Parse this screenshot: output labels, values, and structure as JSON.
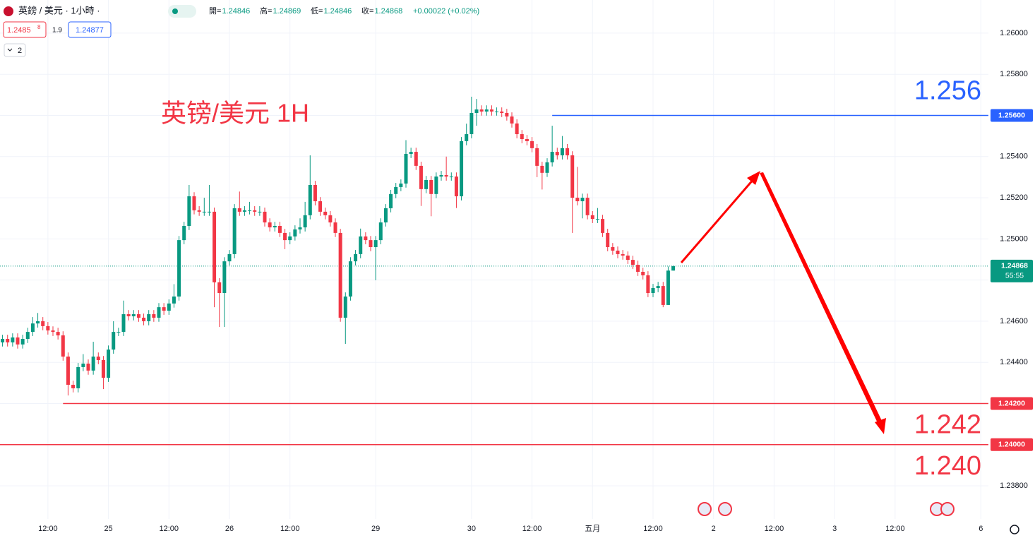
{
  "header": {
    "symbol": "英鎊 / 美元 · 1小時 ·",
    "ohlc": [
      {
        "label": "開=",
        "value": "1.24846"
      },
      {
        "label": "高=",
        "value": "1.24869"
      },
      {
        "label": "低=",
        "value": "1.24846"
      },
      {
        "label": "收=",
        "value": "1.24868"
      }
    ],
    "change": "+0.00022 (+0.02%)",
    "sell": {
      "price": "1.2485",
      "pip": "8"
    },
    "spread": "1.9",
    "buy": "1.24877",
    "indicators": "2",
    "countdown": "55:55"
  },
  "chart_data": {
    "type": "candlestick",
    "annotation": "英镑/美元 1H",
    "up_color": "#089981",
    "down_color": "#f23645",
    "grid": true,
    "ylim": [
      1.23639,
      1.26161
    ],
    "yticks": [
      {
        "value": 1.238,
        "label": "1.23800"
      },
      {
        "value": 1.24,
        "label": "1.24000"
      },
      {
        "value": 1.242,
        "label": "1.24200"
      },
      {
        "value": 1.244,
        "label": "1.24400"
      },
      {
        "value": 1.246,
        "label": "1.24600"
      },
      {
        "value": 1.248,
        "label": "1.24800"
      },
      {
        "value": 1.25,
        "label": "1.25000"
      },
      {
        "value": 1.252,
        "label": "1.25200"
      },
      {
        "value": 1.254,
        "label": "1.25400"
      },
      {
        "value": 1.256,
        "label": "1.25600"
      },
      {
        "value": 1.258,
        "label": "1.25800"
      },
      {
        "value": 1.26,
        "label": "1.26000"
      }
    ],
    "levels": [
      {
        "value": 1.256,
        "label": "1.25600",
        "annotation": "1.256",
        "color": "#2962ff"
      },
      {
        "value": 1.242,
        "label": "1.24200",
        "annotation": "1.242",
        "color": "#f23645"
      },
      {
        "value": 1.24,
        "label": "1.24000",
        "annotation": "1.240",
        "color": "#f23645"
      }
    ],
    "categories": [
      null,
      null,
      null,
      null,
      null,
      null,
      null,
      null,
      null,
      "12:00",
      null,
      null,
      null,
      null,
      null,
      null,
      null,
      null,
      null,
      null,
      null,
      "25",
      null,
      null,
      null,
      null,
      null,
      null,
      null,
      null,
      null,
      null,
      null,
      "12:00",
      null,
      null,
      null,
      null,
      null,
      null,
      null,
      null,
      null,
      null,
      null,
      "26",
      null,
      null,
      null,
      null,
      null,
      null,
      null,
      null,
      null,
      null,
      null,
      "12:00",
      null,
      null,
      null,
      null,
      null,
      null,
      null,
      null,
      null,
      null,
      null,
      null,
      null,
      null,
      null,
      null,
      "29",
      null,
      null,
      null,
      null,
      null,
      null,
      null,
      null,
      null,
      null,
      null,
      null,
      null,
      null,
      null,
      null,
      null,
      null,
      "30",
      null,
      null,
      null,
      null,
      null,
      null,
      null,
      null,
      null,
      null,
      null,
      "12:00",
      null,
      null,
      null,
      null,
      null,
      null,
      null,
      null,
      null,
      null,
      null,
      "五月",
      null,
      null,
      null,
      null,
      null,
      null,
      null,
      null,
      null,
      null,
      null,
      "12:00",
      null,
      null,
      null,
      null,
      null,
      null,
      null,
      null,
      null,
      null,
      null,
      "2",
      null,
      null,
      null,
      null,
      null,
      null,
      null,
      null,
      null,
      null,
      null,
      "12:00",
      null,
      null,
      null,
      null,
      null,
      null,
      null,
      null,
      null,
      null,
      null,
      "3",
      null,
      null,
      null,
      null,
      null,
      null,
      null,
      null,
      null,
      null,
      null,
      "12:00",
      null,
      null,
      null,
      null,
      null,
      null,
      null,
      null,
      null,
      null,
      null,
      null,
      null,
      null,
      null,
      null,
      "6",
      null
    ],
    "open": [
      1.24497,
      1.24514,
      1.24497,
      1.24521,
      1.24487,
      1.24514,
      1.24548,
      1.24589,
      1.246,
      1.24576,
      1.24555,
      1.24548,
      1.24531,
      1.24428,
      1.24291,
      1.24274,
      1.24377,
      1.24394,
      1.2436,
      1.24428,
      1.24411,
      1.24325,
      1.24462,
      1.24548,
      1.24548,
      1.24634,
      1.24624,
      1.24634,
      1.24617,
      1.246,
      1.24634,
      1.24617,
      1.24668,
      1.24651,
      1.24686,
      1.2472,
      1.24994,
      1.25063,
      1.25207,
      1.25139,
      1.25132,
      1.25132,
      1.25132,
      1.24789,
      1.24737,
      1.24891,
      1.24926,
      1.25149,
      1.25132,
      1.25139,
      1.25139,
      1.25132,
      1.25132,
      1.2508,
      1.25056,
      1.25063,
      1.25029,
      1.24994,
      1.25012,
      1.25046,
      1.25056,
      1.25115,
      1.25262,
      1.25183,
      1.25132,
      1.25115,
      1.2508,
      1.25029,
      1.24617,
      1.2472,
      1.24891,
      1.24926,
      1.25012,
      1.24994,
      1.2496,
      1.24994,
      1.2508,
      1.25149,
      1.25218,
      1.25252,
      1.25269,
      1.25413,
      1.25423,
      1.25355,
      1.25242,
      1.25286,
      1.25218,
      1.25303,
      1.2531,
      1.25303,
      1.25303,
      1.25207,
      1.25475,
      1.25509,
      1.25612,
      1.25629,
      1.25619,
      1.25629,
      1.25619,
      1.25619,
      1.25612,
      1.25595,
      1.25561,
      1.25509,
      1.25485,
      1.25475,
      1.25441,
      1.25355,
      1.25321,
      1.25372,
      1.25423,
      1.25406,
      1.25441,
      1.25406,
      1.252,
      1.25183,
      1.252,
      1.25115,
      1.25097,
      1.25097,
      1.25029,
      1.2496,
      1.24943,
      1.24926,
      1.24919,
      1.24898,
      1.24874,
      1.2484,
      1.24823,
      1.24737,
      1.24761,
      1.24771,
      1.24679,
      1.24846,
      null,
      null,
      null,
      null,
      null,
      null,
      null,
      null,
      null,
      null,
      null,
      null,
      null,
      null,
      null,
      null,
      null,
      null,
      null,
      null,
      null,
      null,
      null,
      null,
      null,
      null,
      null,
      null,
      null,
      null,
      null,
      null,
      null,
      null,
      null,
      null,
      null,
      null,
      null,
      null,
      null,
      null,
      null,
      null,
      null,
      null,
      null,
      null,
      null,
      null,
      null,
      null,
      null,
      null,
      null,
      null,
      null,
      null,
      null,
      null,
      null,
      null
    ],
    "high": [
      1.24534,
      1.24534,
      1.24541,
      1.24541,
      1.24534,
      1.24568,
      1.2462,
      1.2464,
      1.2462,
      1.24596,
      1.24575,
      1.24568,
      1.24551,
      1.24448,
      1.24311,
      1.24397,
      1.2444,
      1.24414,
      1.245,
      1.24448,
      1.24431,
      1.24482,
      1.246,
      1.24568,
      1.247,
      1.24654,
      1.24654,
      1.24654,
      1.24637,
      1.24654,
      1.24654,
      1.24688,
      1.24688,
      1.24706,
      1.2478,
      1.25014,
      1.25083,
      1.25262,
      1.25227,
      1.25159,
      1.252,
      1.25262,
      1.25152,
      1.24809,
      1.24911,
      1.24946,
      1.25169,
      1.2523,
      1.25159,
      1.2518,
      1.25159,
      1.25159,
      1.25152,
      1.251,
      1.25083,
      1.25083,
      1.25049,
      1.25032,
      1.25066,
      1.251,
      1.2518,
      1.25406,
      1.25282,
      1.25203,
      1.25152,
      1.25135,
      1.251,
      1.25049,
      1.2474,
      1.24911,
      1.24946,
      1.2505,
      1.25032,
      1.25014,
      1.25014,
      1.251,
      1.25169,
      1.25238,
      1.25272,
      1.25289,
      1.2548,
      1.25443,
      1.25443,
      1.25375,
      1.25306,
      1.25306,
      1.25323,
      1.2533,
      1.254,
      1.25323,
      1.25323,
      1.25495,
      1.2556,
      1.25691,
      1.2568,
      1.25649,
      1.25649,
      1.25649,
      1.25639,
      1.25639,
      1.25632,
      1.25615,
      1.25581,
      1.25529,
      1.25505,
      1.25495,
      1.25461,
      1.25375,
      1.25392,
      1.2555,
      1.25443,
      1.255,
      1.25461,
      1.25426,
      1.2535,
      1.2522,
      1.2522,
      1.25135,
      1.2515,
      1.25117,
      1.25049,
      1.2498,
      1.24963,
      1.24946,
      1.24939,
      1.24918,
      1.24894,
      1.2486,
      1.24843,
      1.24781,
      1.24791,
      1.24791,
      1.24866,
      1.24869,
      null,
      null,
      null,
      null,
      null,
      null,
      null,
      null,
      null,
      null,
      null,
      null,
      null,
      null,
      null,
      null,
      null,
      null,
      null,
      null,
      null,
      null,
      null,
      null,
      null,
      null,
      null,
      null,
      null,
      null,
      null,
      null,
      null,
      null,
      null,
      null,
      null,
      null,
      null,
      null,
      null,
      null,
      null,
      null,
      null,
      null,
      null,
      null,
      null,
      null,
      null,
      null,
      null,
      null,
      null,
      null,
      null,
      null,
      null,
      null,
      null,
      null
    ],
    "low": [
      1.24477,
      1.24477,
      1.24477,
      1.24467,
      1.24467,
      1.24494,
      1.24528,
      1.24569,
      1.24556,
      1.24535,
      1.24528,
      1.24511,
      1.24408,
      1.24239,
      1.24254,
      1.24254,
      1.24357,
      1.2434,
      1.2434,
      1.24391,
      1.2427,
      1.24305,
      1.24442,
      1.24528,
      1.24528,
      1.24604,
      1.24604,
      1.24597,
      1.2458,
      1.2458,
      1.24597,
      1.24597,
      1.24631,
      1.24631,
      1.24666,
      1.247,
      1.24974,
      1.25043,
      1.25119,
      1.25112,
      1.25112,
      1.25112,
      1.24668,
      1.24572,
      1.24572,
      1.24871,
      1.24906,
      1.25112,
      1.25112,
      1.25119,
      1.25112,
      1.25112,
      1.2506,
      1.25036,
      1.25036,
      1.25009,
      1.2495,
      1.24974,
      1.24992,
      1.25026,
      1.25036,
      1.25095,
      1.25163,
      1.25112,
      1.25095,
      1.2506,
      1.25009,
      1.24597,
      1.2449,
      1.247,
      1.24871,
      1.24906,
      1.24974,
      1.2494,
      1.24799,
      1.24974,
      1.2506,
      1.25129,
      1.25198,
      1.25232,
      1.25249,
      1.25393,
      1.25335,
      1.2516,
      1.25222,
      1.2511,
      1.25198,
      1.25283,
      1.25283,
      1.25283,
      1.2515,
      1.25187,
      1.25455,
      1.25489,
      1.2555,
      1.25599,
      1.25599,
      1.25599,
      1.25599,
      1.25592,
      1.25575,
      1.25541,
      1.25489,
      1.25465,
      1.25455,
      1.25421,
      1.253,
      1.2524,
      1.25301,
      1.25352,
      1.25386,
      1.25386,
      1.25386,
      1.25029,
      1.25163,
      1.251,
      1.25095,
      1.25077,
      1.25077,
      1.25009,
      1.2494,
      1.24923,
      1.24906,
      1.24899,
      1.24878,
      1.24854,
      1.2482,
      1.24803,
      1.24717,
      1.24717,
      1.24741,
      1.24668,
      1.24679,
      1.24846,
      null,
      null,
      null,
      null,
      null,
      null,
      null,
      null,
      null,
      null,
      null,
      null,
      null,
      null,
      null,
      null,
      null,
      null,
      null,
      null,
      null,
      null,
      null,
      null,
      null,
      null,
      null,
      null,
      null,
      null,
      null,
      null,
      null,
      null,
      null,
      null,
      null,
      null,
      null,
      null,
      null,
      null,
      null,
      null,
      null,
      null,
      null,
      null,
      null,
      null,
      null,
      null,
      null,
      null,
      null,
      null,
      null,
      null,
      null,
      null,
      null,
      null
    ],
    "close": [
      1.24514,
      1.24497,
      1.24521,
      1.24487,
      1.24514,
      1.24548,
      1.24589,
      1.246,
      1.24576,
      1.24555,
      1.24548,
      1.24531,
      1.24428,
      1.24291,
      1.24274,
      1.24377,
      1.24394,
      1.2436,
      1.24428,
      1.24411,
      1.24325,
      1.24462,
      1.24548,
      1.24548,
      1.24634,
      1.24624,
      1.24634,
      1.24617,
      1.246,
      1.24634,
      1.24617,
      1.24668,
      1.24651,
      1.24686,
      1.2472,
      1.24994,
      1.25063,
      1.25207,
      1.25139,
      1.25132,
      1.25132,
      1.25132,
      1.24789,
      1.24737,
      1.24891,
      1.24926,
      1.25149,
      1.25132,
      1.25139,
      1.25139,
      1.25132,
      1.25132,
      1.2508,
      1.25056,
      1.25063,
      1.25029,
      1.24994,
      1.25012,
      1.25046,
      1.25056,
      1.25115,
      1.25262,
      1.25183,
      1.25132,
      1.25115,
      1.2508,
      1.25029,
      1.24617,
      1.2472,
      1.24891,
      1.24926,
      1.25012,
      1.24994,
      1.2496,
      1.24994,
      1.2508,
      1.25149,
      1.25218,
      1.25252,
      1.25269,
      1.25413,
      1.25423,
      1.25355,
      1.25242,
      1.25286,
      1.25218,
      1.25303,
      1.2531,
      1.25303,
      1.25303,
      1.25207,
      1.25475,
      1.25509,
      1.25612,
      1.25629,
      1.25619,
      1.25629,
      1.25619,
      1.25619,
      1.25612,
      1.25595,
      1.25561,
      1.25509,
      1.25485,
      1.25475,
      1.25441,
      1.25355,
      1.25321,
      1.25372,
      1.25423,
      1.25406,
      1.25441,
      1.25406,
      1.252,
      1.25183,
      1.252,
      1.25115,
      1.25097,
      1.25097,
      1.25029,
      1.2496,
      1.24943,
      1.24926,
      1.24919,
      1.24898,
      1.24874,
      1.2484,
      1.24823,
      1.24737,
      1.24761,
      1.24771,
      1.24679,
      1.24846,
      1.24868,
      null,
      null,
      null,
      null,
      null,
      null,
      null,
      null,
      null,
      null,
      null,
      null,
      null,
      null,
      null,
      null,
      null,
      null,
      null,
      null,
      null,
      null,
      null,
      null,
      null,
      null,
      null,
      null,
      null,
      null,
      null,
      null,
      null,
      null,
      null,
      null,
      null,
      null,
      null,
      null,
      null,
      null,
      null,
      null,
      null,
      null,
      null,
      null,
      null,
      null,
      null,
      null,
      null,
      null,
      null,
      null,
      null,
      null,
      null,
      null,
      null,
      null
    ]
  }
}
